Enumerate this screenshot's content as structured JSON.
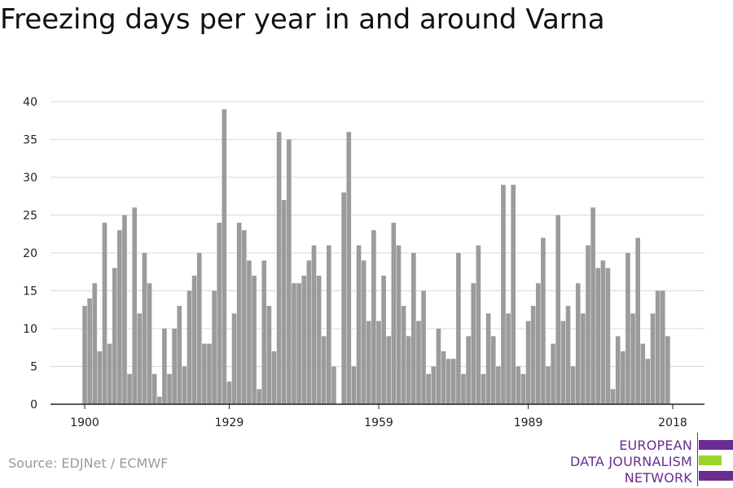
{
  "title": "Freezing days per year in and around Varna",
  "source": "Source: EDJNet / ECMWF",
  "logo": {
    "lines": [
      "EUROPEAN",
      "DATA JOURNALISM",
      "NETWORK"
    ],
    "colors": {
      "purple": "#6a2c91",
      "green": "#9bd32b"
    }
  },
  "colors": {
    "bar": "#9b9b9b",
    "grid": "#d9d9d9",
    "axis": "#222222",
    "tick_label": "#222222"
  },
  "chart_data": {
    "type": "bar",
    "title": "Freezing days per year in and around Varna",
    "xlabel": "",
    "ylabel": "",
    "ylim": [
      0,
      40
    ],
    "xlim": [
      1900,
      2018
    ],
    "y_ticks": [
      0,
      5,
      10,
      15,
      20,
      25,
      30,
      35,
      40
    ],
    "x_ticks": [
      1900,
      1929,
      1959,
      1989,
      2018
    ],
    "grid": "horizontal",
    "x": [
      1900,
      1901,
      1902,
      1903,
      1904,
      1905,
      1906,
      1907,
      1908,
      1909,
      1910,
      1911,
      1912,
      1913,
      1914,
      1915,
      1916,
      1917,
      1918,
      1919,
      1920,
      1921,
      1922,
      1923,
      1924,
      1925,
      1926,
      1927,
      1928,
      1929,
      1930,
      1931,
      1932,
      1933,
      1934,
      1935,
      1936,
      1937,
      1938,
      1939,
      1940,
      1941,
      1942,
      1943,
      1944,
      1945,
      1946,
      1947,
      1948,
      1949,
      1950,
      1951,
      1952,
      1953,
      1954,
      1955,
      1956,
      1957,
      1958,
      1959,
      1960,
      1961,
      1962,
      1963,
      1964,
      1965,
      1966,
      1967,
      1968,
      1969,
      1970,
      1971,
      1972,
      1973,
      1974,
      1975,
      1976,
      1977,
      1978,
      1979,
      1980,
      1981,
      1982,
      1983,
      1984,
      1985,
      1986,
      1987,
      1988,
      1989,
      1990,
      1991,
      1992,
      1993,
      1994,
      1995,
      1996,
      1997,
      1998,
      1999,
      2000,
      2001,
      2002,
      2003,
      2004,
      2005,
      2006,
      2007,
      2008,
      2009,
      2010,
      2011,
      2012,
      2013,
      2014,
      2015,
      2016,
      2017,
      2018
    ],
    "values": [
      13,
      14,
      16,
      7,
      24,
      8,
      18,
      23,
      25,
      4,
      26,
      12,
      20,
      16,
      4,
      1,
      10,
      4,
      10,
      13,
      5,
      15,
      17,
      20,
      8,
      8,
      15,
      24,
      39,
      3,
      12,
      24,
      23,
      19,
      17,
      2,
      19,
      13,
      7,
      36,
      27,
      35,
      16,
      16,
      17,
      19,
      21,
      17,
      9,
      21,
      5,
      0,
      28,
      36,
      5,
      21,
      19,
      11,
      23,
      11,
      17,
      9,
      24,
      21,
      13,
      9,
      20,
      11,
      15,
      4,
      5,
      10,
      7,
      6,
      6,
      20,
      4,
      9,
      16,
      21,
      4,
      12,
      9,
      5,
      29,
      12,
      29,
      5,
      4,
      11,
      13,
      16,
      22,
      5,
      8,
      25,
      11,
      13,
      5,
      16,
      12,
      21,
      26,
      18,
      19,
      18,
      2,
      9,
      7,
      20,
      12,
      22,
      8,
      6,
      12,
      15,
      15,
      9,
      0
    ]
  }
}
